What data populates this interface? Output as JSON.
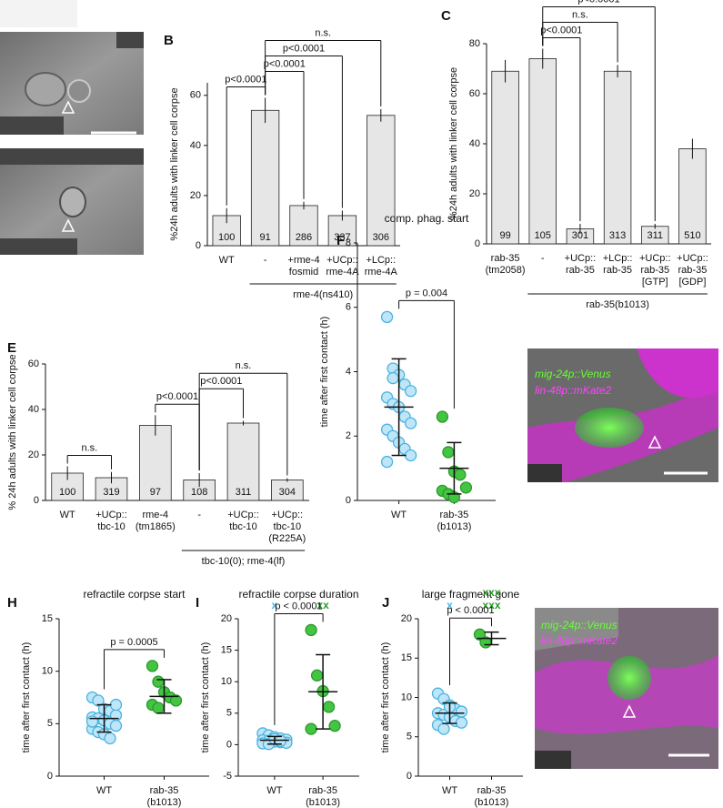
{
  "chart_data": [
    {
      "panel": "B",
      "type": "bar",
      "ylabel": "%24h adults with linker cell corpse",
      "categories": [
        [
          "WT"
        ],
        [
          "-"
        ],
        [
          "+rme-4",
          "fosmid"
        ],
        [
          "+UCp::",
          "rme-4A"
        ],
        [
          "+LCp::",
          "rme-4A"
        ]
      ],
      "values": [
        12,
        54,
        16,
        12,
        52
      ],
      "errors": [
        3,
        5,
        1.5,
        2,
        2.5
      ],
      "n": [
        100,
        91,
        286,
        337,
        306
      ],
      "ylim": [
        0,
        65
      ],
      "yticks": [
        0,
        20,
        40,
        60
      ],
      "color": "#e6e6e6",
      "group": {
        "label": "rme-4(ns410)",
        "from": 1,
        "to": 4
      },
      "comparisons": [
        {
          "text": "p<0.0001",
          "from": 0,
          "to": 1
        },
        {
          "text": "p<0.0001",
          "from": 1,
          "to": 2
        },
        {
          "text": "p<0.0001",
          "from": 1,
          "to": 3
        },
        {
          "text": "n.s.",
          "from": 1,
          "to": 4
        }
      ]
    },
    {
      "panel": "C",
      "type": "bar",
      "ylabel": "%24h adults with linker cell corpse",
      "categories": [
        [
          "rab-35",
          "(tm2058)"
        ],
        [
          "-"
        ],
        [
          "+UCp::",
          "rab-35"
        ],
        [
          "+LCp::",
          "rab-35"
        ],
        [
          "+UCp::",
          "rab-35",
          "[GTP]"
        ],
        [
          "+UCp::",
          "rab-35",
          "[GDP]"
        ]
      ],
      "values": [
        69,
        74,
        6,
        69,
        7,
        38
      ],
      "errors": [
        4.5,
        4,
        2,
        2.5,
        1,
        4
      ],
      "n": [
        99,
        105,
        301,
        313,
        311,
        510
      ],
      "ylim": [
        0,
        80
      ],
      "yticks": [
        0,
        20,
        40,
        60,
        80
      ],
      "color": "#e6e6e6",
      "group": {
        "label": "rab-35(b1013)",
        "from": 1,
        "to": 5
      },
      "comparisons": [
        {
          "text": "p<0.0001",
          "from": 1,
          "to": 2
        },
        {
          "text": "n.s.",
          "from": 1,
          "to": 3
        },
        {
          "text": "p<0.0001",
          "from": 1,
          "to": 4
        }
      ]
    },
    {
      "panel": "E",
      "type": "bar",
      "ylabel": "% 24h adults with linker cell corpse",
      "categories": [
        [
          "WT"
        ],
        [
          "+UCp::",
          "tbc-10"
        ],
        [
          "rme-4",
          "(tm1865)"
        ],
        [
          "-"
        ],
        [
          "+UCp::",
          "tbc-10"
        ],
        [
          "+UCp::",
          "tbc-10",
          "(R225A)"
        ]
      ],
      "values": [
        12,
        10,
        33,
        9,
        34,
        9
      ],
      "errors": [
        3,
        2.5,
        4.5,
        3,
        1,
        0.8
      ],
      "n": [
        100,
        319,
        97,
        108,
        311,
        304
      ],
      "ylim": [
        0,
        60
      ],
      "yticks": [
        0,
        20,
        40,
        60
      ],
      "color": "#e6e6e6",
      "group": {
        "label": "tbc-10(0); rme-4(lf)",
        "from": 3,
        "to": 5
      },
      "comparisons": [
        {
          "text": "n.s.",
          "from": 0,
          "to": 1
        },
        {
          "text": "p<0.0001",
          "from": 2,
          "to": 3
        },
        {
          "text": "p<0.0001",
          "from": 3,
          "to": 4
        },
        {
          "text": "n.s.",
          "from": 3,
          "to": 5
        }
      ]
    },
    {
      "panel": "F",
      "type": "scatter",
      "title": "comp. phag. start",
      "ylabel": "time after first contact (h)",
      "categories": [
        [
          "WT"
        ],
        [
          "rab-35",
          "(b1013)"
        ]
      ],
      "ylim": [
        0,
        8
      ],
      "yticks": [
        0,
        2,
        4,
        6,
        8
      ],
      "series": [
        {
          "color": "#bfe6f8",
          "edge": "#4ab3df",
          "values": [
            5.7,
            4.1,
            3.9,
            3.6,
            3.4,
            3.2,
            3.0,
            2.9,
            2.6,
            2.4,
            2.2,
            2.0,
            1.8,
            1.6,
            1.4,
            1.2,
            3.8
          ],
          "mean": 2.9,
          "sd": 1.5
        },
        {
          "color": "#43c543",
          "edge": "#2a992a",
          "values": [
            2.6,
            1.5,
            0.9,
            0.8,
            0.4,
            0.3,
            0.2,
            0.1
          ],
          "mean": 1.0,
          "sd": 0.8
        }
      ],
      "comparisons": [
        {
          "text": "p = 0.004",
          "from": 0,
          "to": 1
        }
      ]
    },
    {
      "panel": "H",
      "type": "scatter",
      "title": "refractile corpse start",
      "ylabel": "time after first contact (h)",
      "categories": [
        [
          "WT"
        ],
        [
          "rab-35",
          "(b1013)"
        ]
      ],
      "ylim": [
        0,
        15
      ],
      "yticks": [
        0,
        5,
        10,
        15
      ],
      "series": [
        {
          "color": "#bfe6f8",
          "edge": "#4ab3df",
          "values": [
            7.5,
            7.2,
            6.4,
            6.2,
            5.8,
            5.6,
            5.5,
            5.3,
            5.0,
            4.8,
            4.5,
            4.2,
            4.0,
            3.6,
            6.8,
            5.2
          ],
          "mean": 5.5,
          "sd": 1.3
        },
        {
          "color": "#43c543",
          "edge": "#2a992a",
          "values": [
            10.5,
            9.0,
            8.0,
            7.5,
            7.2,
            6.8,
            6.5
          ],
          "mean": 7.6,
          "sd": 1.6
        }
      ],
      "comparisons": [
        {
          "text": "p = 0.0005",
          "from": 0,
          "to": 1
        }
      ]
    },
    {
      "panel": "I",
      "type": "scatter",
      "title": "refractile corpse duration",
      "ylabel": "time after first contact (h)",
      "categories": [
        [
          "WT"
        ],
        [
          "rab-35",
          "(b1013)"
        ]
      ],
      "ylim": [
        -5,
        20
      ],
      "yticks": [
        -5,
        0,
        5,
        10,
        15,
        20
      ],
      "series": [
        {
          "color": "#bfe6f8",
          "edge": "#4ab3df",
          "values": [
            1.8,
            1.5,
            1.2,
            1.0,
            0.8,
            0.7,
            0.6,
            0.5,
            0.4,
            0.3,
            0.2,
            0.1,
            0.9,
            0.6
          ],
          "mean": 0.7,
          "sd": 0.6,
          "markers": [
            "x"
          ]
        },
        {
          "color": "#43c543",
          "edge": "#2a992a",
          "values": [
            18.2,
            11.0,
            8.5,
            6.0,
            3.0,
            2.5
          ],
          "mean": 8.4,
          "sd": 5.9,
          "markers": [
            "xx"
          ]
        }
      ],
      "comparisons": [
        {
          "text": "p < 0.0001",
          "from": 0,
          "to": 1
        }
      ]
    },
    {
      "panel": "J",
      "type": "scatter",
      "title": "large fragment gone",
      "ylabel": "time after first contact (h)",
      "categories": [
        [
          "WT"
        ],
        [
          "rab-35",
          "(b1013)"
        ]
      ],
      "ylim": [
        0,
        20
      ],
      "yticks": [
        0,
        5,
        10,
        15,
        20
      ],
      "series": [
        {
          "color": "#bfe6f8",
          "edge": "#4ab3df",
          "values": [
            10.5,
            9.8,
            9.0,
            8.5,
            8.2,
            8.0,
            7.8,
            7.5,
            7.0,
            6.8,
            6.5,
            6.0,
            8.8
          ],
          "mean": 8.0,
          "sd": 1.3,
          "markers": [
            "x"
          ]
        },
        {
          "color": "#43c543",
          "edge": "#2a992a",
          "values": [
            18.0,
            17.0
          ],
          "mean": 17.5,
          "sd": 0.8,
          "markers": [
            "xxx",
            "xxx"
          ]
        }
      ],
      "comparisons": [
        {
          "text": "p < 0.0001",
          "from": 0,
          "to": 1
        }
      ]
    }
  ],
  "images": [
    {
      "labels": [
        "mig-24p::Venus",
        "lin-48p::mKate2"
      ]
    },
    {
      "labels": [
        "mig-24p::Venus",
        "lin-48p::mKate2"
      ]
    }
  ]
}
